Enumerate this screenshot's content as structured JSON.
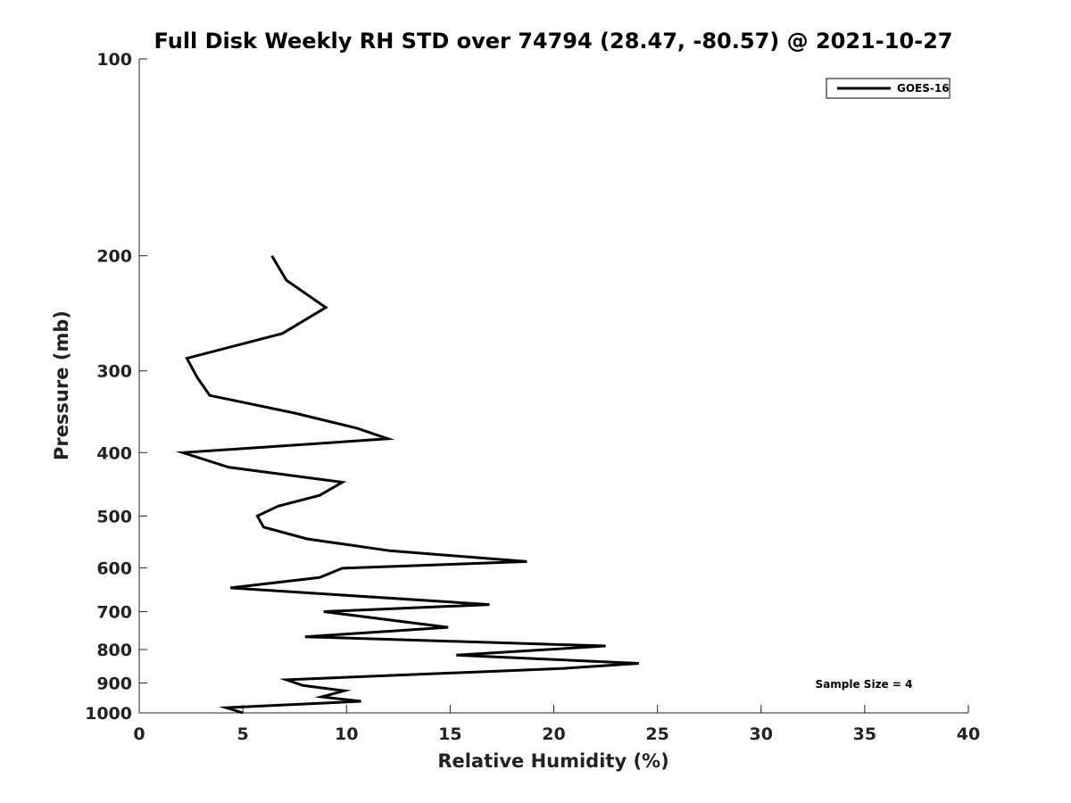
{
  "chart_data": {
    "type": "line",
    "title": "Full Disk Weekly RH STD over 74794 (28.47, -80.57) @ 2021-10-27",
    "xlabel": "Relative Humidity (%)",
    "ylabel": "Pressure (mb)",
    "xlim": [
      0,
      40
    ],
    "ylim": [
      100,
      1000
    ],
    "y_scale": "log",
    "y_reversed": true,
    "x_ticks": [
      0,
      5,
      10,
      15,
      20,
      25,
      30,
      35,
      40
    ],
    "y_ticks": [
      100,
      200,
      300,
      400,
      500,
      600,
      700,
      800,
      900,
      1000
    ],
    "grid": false,
    "legend_placement": "top-right",
    "series": [
      {
        "name": "GOES-16",
        "color": "#000000",
        "points": [
          {
            "x": 6.4,
            "y": 200
          },
          {
            "x": 7.1,
            "y": 218
          },
          {
            "x": 9.0,
            "y": 240
          },
          {
            "x": 6.9,
            "y": 263
          },
          {
            "x": 2.3,
            "y": 287
          },
          {
            "x": 2.8,
            "y": 307
          },
          {
            "x": 3.4,
            "y": 327
          },
          {
            "x": 7.5,
            "y": 348
          },
          {
            "x": 10.5,
            "y": 367
          },
          {
            "x": 12.0,
            "y": 381
          },
          {
            "x": 2.1,
            "y": 400
          },
          {
            "x": 4.3,
            "y": 421
          },
          {
            "x": 9.8,
            "y": 444
          },
          {
            "x": 8.7,
            "y": 465
          },
          {
            "x": 6.7,
            "y": 483
          },
          {
            "x": 5.7,
            "y": 500
          },
          {
            "x": 6.0,
            "y": 520
          },
          {
            "x": 8.1,
            "y": 542
          },
          {
            "x": 12.1,
            "y": 565
          },
          {
            "x": 18.7,
            "y": 587
          },
          {
            "x": 9.8,
            "y": 601
          },
          {
            "x": 8.7,
            "y": 621
          },
          {
            "x": 4.4,
            "y": 644
          },
          {
            "x": 16.9,
            "y": 683
          },
          {
            "x": 8.9,
            "y": 700
          },
          {
            "x": 14.9,
            "y": 740
          },
          {
            "x": 8.0,
            "y": 765
          },
          {
            "x": 22.5,
            "y": 790
          },
          {
            "x": 15.3,
            "y": 816
          },
          {
            "x": 24.1,
            "y": 840
          },
          {
            "x": 20.5,
            "y": 855
          },
          {
            "x": 7.1,
            "y": 890
          },
          {
            "x": 7.9,
            "y": 908
          },
          {
            "x": 9.9,
            "y": 925
          },
          {
            "x": 8.8,
            "y": 945
          },
          {
            "x": 10.7,
            "y": 960
          },
          {
            "x": 4.2,
            "y": 982
          },
          {
            "x": 5.0,
            "y": 1000
          }
        ]
      }
    ],
    "annotations": [
      "Sample Size = 4"
    ]
  }
}
